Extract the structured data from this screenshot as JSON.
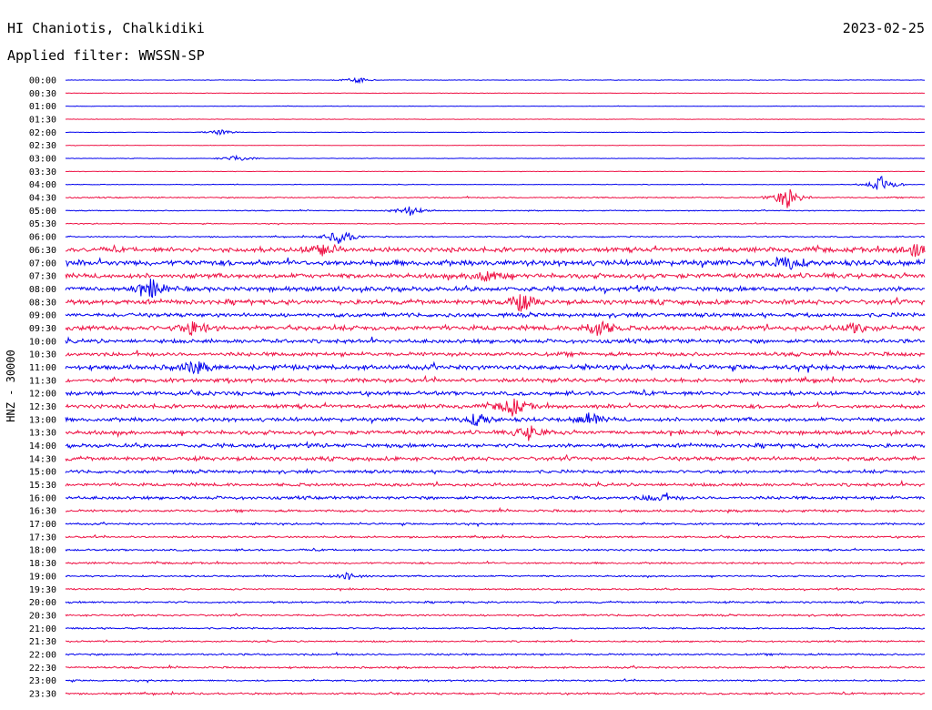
{
  "header": {
    "station": "HI Chaniotis, Chalkidiki",
    "date": "2023-02-25",
    "filter": "Applied filter: WWSSN-SP"
  },
  "chart_data": {
    "type": "line",
    "ylabel": "HNZ - 30000",
    "row_labels": [
      "00:00",
      "00:30",
      "01:00",
      "01:30",
      "02:00",
      "02:30",
      "03:00",
      "03:30",
      "04:00",
      "04:30",
      "05:00",
      "05:30",
      "06:00",
      "06:30",
      "07:00",
      "07:30",
      "08:00",
      "08:30",
      "09:00",
      "09:30",
      "10:00",
      "10:30",
      "11:00",
      "11:30",
      "12:00",
      "12:30",
      "13:00",
      "13:30",
      "14:00",
      "14:30",
      "15:00",
      "15:30",
      "16:00",
      "16:30",
      "17:00",
      "17:30",
      "18:00",
      "18:30",
      "19:00",
      "19:30",
      "20:00",
      "20:30",
      "21:00",
      "21:30",
      "22:00",
      "22:30",
      "23:00",
      "23:30"
    ],
    "row_noise": [
      0.3,
      0.3,
      0.3,
      0.3,
      0.3,
      0.3,
      0.3,
      0.3,
      0.4,
      0.8,
      0.6,
      0.6,
      0.8,
      3.0,
      3.5,
      3.0,
      3.0,
      3.0,
      2.5,
      3.0,
      2.5,
      2.5,
      3.0,
      2.5,
      2.5,
      2.5,
      2.5,
      2.5,
      2.5,
      2.5,
      2.0,
      2.0,
      2.0,
      1.5,
      1.2,
      1.2,
      1.2,
      1.2,
      1.0,
      1.0,
      1.2,
      1.2,
      1.0,
      1.0,
      1.2,
      1.2,
      1.0,
      1.2
    ],
    "events": [
      {
        "row": 0,
        "t": 0.34,
        "amp": 3
      },
      {
        "row": 4,
        "t": 0.18,
        "amp": 3
      },
      {
        "row": 6,
        "t": 0.2,
        "amp": 4
      },
      {
        "row": 8,
        "t": 0.95,
        "amp": 9
      },
      {
        "row": 9,
        "t": 0.84,
        "amp": 12
      },
      {
        "row": 10,
        "t": 0.4,
        "amp": 6
      },
      {
        "row": 12,
        "t": 0.32,
        "amp": 9
      },
      {
        "row": 13,
        "t": 0.3,
        "amp": 8
      },
      {
        "row": 13,
        "t": 0.99,
        "amp": 10
      },
      {
        "row": 14,
        "t": 0.84,
        "amp": 8
      },
      {
        "row": 15,
        "t": 0.49,
        "amp": 8
      },
      {
        "row": 16,
        "t": 0.1,
        "amp": 10
      },
      {
        "row": 17,
        "t": 0.53,
        "amp": 10
      },
      {
        "row": 19,
        "t": 0.15,
        "amp": 8
      },
      {
        "row": 19,
        "t": 0.62,
        "amp": 10
      },
      {
        "row": 19,
        "t": 0.92,
        "amp": 6
      },
      {
        "row": 22,
        "t": 0.15,
        "amp": 7
      },
      {
        "row": 25,
        "t": 0.52,
        "amp": 10
      },
      {
        "row": 26,
        "t": 0.48,
        "amp": 7
      },
      {
        "row": 26,
        "t": 0.61,
        "amp": 6
      },
      {
        "row": 27,
        "t": 0.54,
        "amp": 8
      },
      {
        "row": 32,
        "t": 0.69,
        "amp": 5
      },
      {
        "row": 38,
        "t": 0.33,
        "amp": 4
      }
    ],
    "colors": [
      "#0000ee",
      "#ee1144"
    ],
    "x_range_minutes": [
      0,
      30
    ],
    "grid": false
  }
}
